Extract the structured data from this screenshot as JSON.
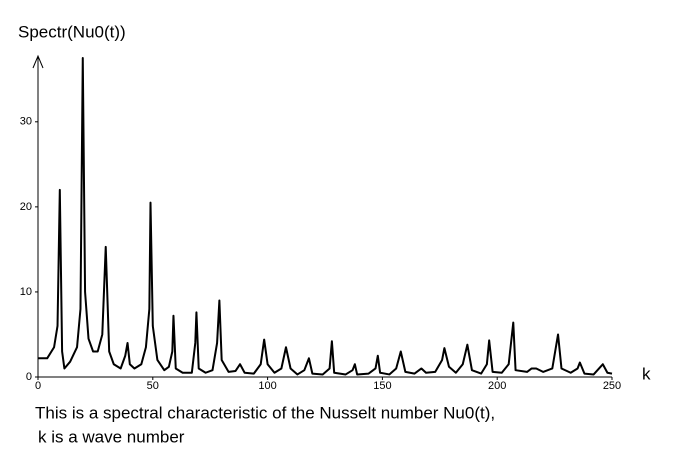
{
  "chart_data": {
    "type": "line",
    "title": "Spectr(Nu0(t))",
    "x_label": "k",
    "caption": [
      "This is a spectral characteristic of the Nusselt number Nu0(t),",
      "k is a wave number"
    ],
    "color": "#000000",
    "xlim": [
      0,
      250
    ],
    "xticks": [
      0,
      50,
      100,
      150,
      200,
      250
    ],
    "ylim": [
      0,
      37.5
    ],
    "yticks": [
      0,
      10,
      20,
      30
    ],
    "x": [
      0,
      4,
      7,
      8.5,
      9.5,
      10.5,
      11.5,
      14,
      17,
      18.5,
      19.5,
      20.5,
      22,
      24,
      26,
      28,
      29.5,
      31,
      33,
      36,
      38,
      39,
      40,
      42,
      45,
      47,
      48.5,
      49,
      50,
      52,
      55,
      57,
      58.5,
      59,
      60,
      63,
      67,
      68.5,
      69,
      70,
      73,
      76,
      78,
      79,
      80,
      83,
      86,
      88,
      90,
      94,
      97,
      98.5,
      100,
      103,
      106,
      108,
      110,
      113,
      116,
      118,
      119.5,
      124,
      127,
      128,
      129,
      134,
      137,
      138,
      139,
      144,
      147,
      148,
      149,
      153,
      156,
      158,
      160,
      164,
      167,
      169,
      173,
      176,
      177,
      179,
      182,
      185,
      187,
      189,
      193,
      195.5,
      196.5,
      198,
      202,
      205,
      207,
      208,
      213,
      215,
      217,
      220,
      224,
      226.5,
      228,
      232,
      235,
      236,
      238,
      242,
      245,
      246,
      248,
      250
    ],
    "values": [
      2.2,
      2.2,
      3.5,
      6,
      22,
      3,
      1,
      1.8,
      3.5,
      8,
      37.5,
      10,
      4.5,
      3,
      3,
      5,
      15.3,
      3,
      1.5,
      1,
      2.5,
      4,
      1.5,
      1,
      1.5,
      3.5,
      8,
      20.5,
      6,
      2,
      0.8,
      1.2,
      3,
      7.2,
      1,
      0.5,
      0.5,
      4,
      7.6,
      1,
      0.5,
      0.8,
      4,
      9,
      2,
      0.6,
      0.7,
      1.5,
      0.5,
      0.4,
      1.5,
      4.4,
      1.5,
      0.5,
      1,
      3.5,
      1,
      0.3,
      0.8,
      2.2,
      0.4,
      0.3,
      1,
      4.2,
      0.5,
      0.3,
      0.8,
      1.5,
      0.3,
      0.4,
      1,
      2.5,
      0.5,
      0.3,
      1,
      3,
      0.6,
      0.4,
      1,
      0.5,
      0.6,
      2,
      3.4,
      1.2,
      0.5,
      1.5,
      3.8,
      0.8,
      0.4,
      1.5,
      4.3,
      0.6,
      0.5,
      1.5,
      6.4,
      0.8,
      0.6,
      1,
      1,
      0.6,
      1,
      5,
      1,
      0.5,
      1,
      1.7,
      0.4,
      0.3,
      1.2,
      1.5,
      0.5,
      0.4
    ]
  }
}
